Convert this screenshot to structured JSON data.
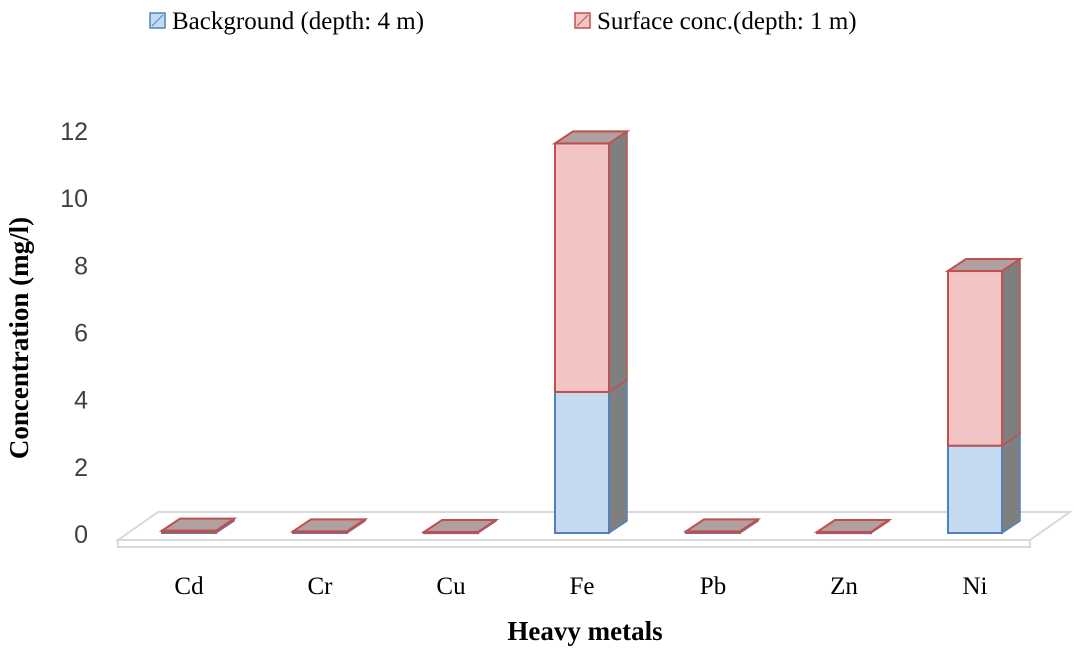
{
  "chart_data": {
    "type": "bar",
    "stacked": true,
    "three_d": true,
    "categories": [
      "Cd",
      "Cr",
      "Cu",
      "Fe",
      "Pb",
      "Zn",
      "Ni"
    ],
    "series": [
      {
        "name": "Background (depth: 4 m)",
        "values": [
          0.03,
          0.02,
          0.01,
          4.2,
          0.02,
          0.01,
          2.6
        ],
        "fill": "#c5d9f1",
        "stroke": "#4f81bd"
      },
      {
        "name": "Surface conc.(depth: 1 m)",
        "values": [
          0.04,
          0.03,
          0.02,
          7.4,
          0.03,
          0.02,
          5.2
        ],
        "fill": "#f2c4c4",
        "stroke": "#c0504d"
      }
    ],
    "xlabel": "Heavy metals",
    "ylabel": "Concentration (mg/l)",
    "ylim": [
      0,
      12
    ],
    "yticks": [
      0,
      2,
      4,
      6,
      8,
      10,
      12
    ],
    "legend_position": "top",
    "grid": false,
    "colors": {
      "side_face": "#7f7f7f",
      "floor_stroke": "#d9d9d9",
      "axis_text": "#404040"
    }
  }
}
